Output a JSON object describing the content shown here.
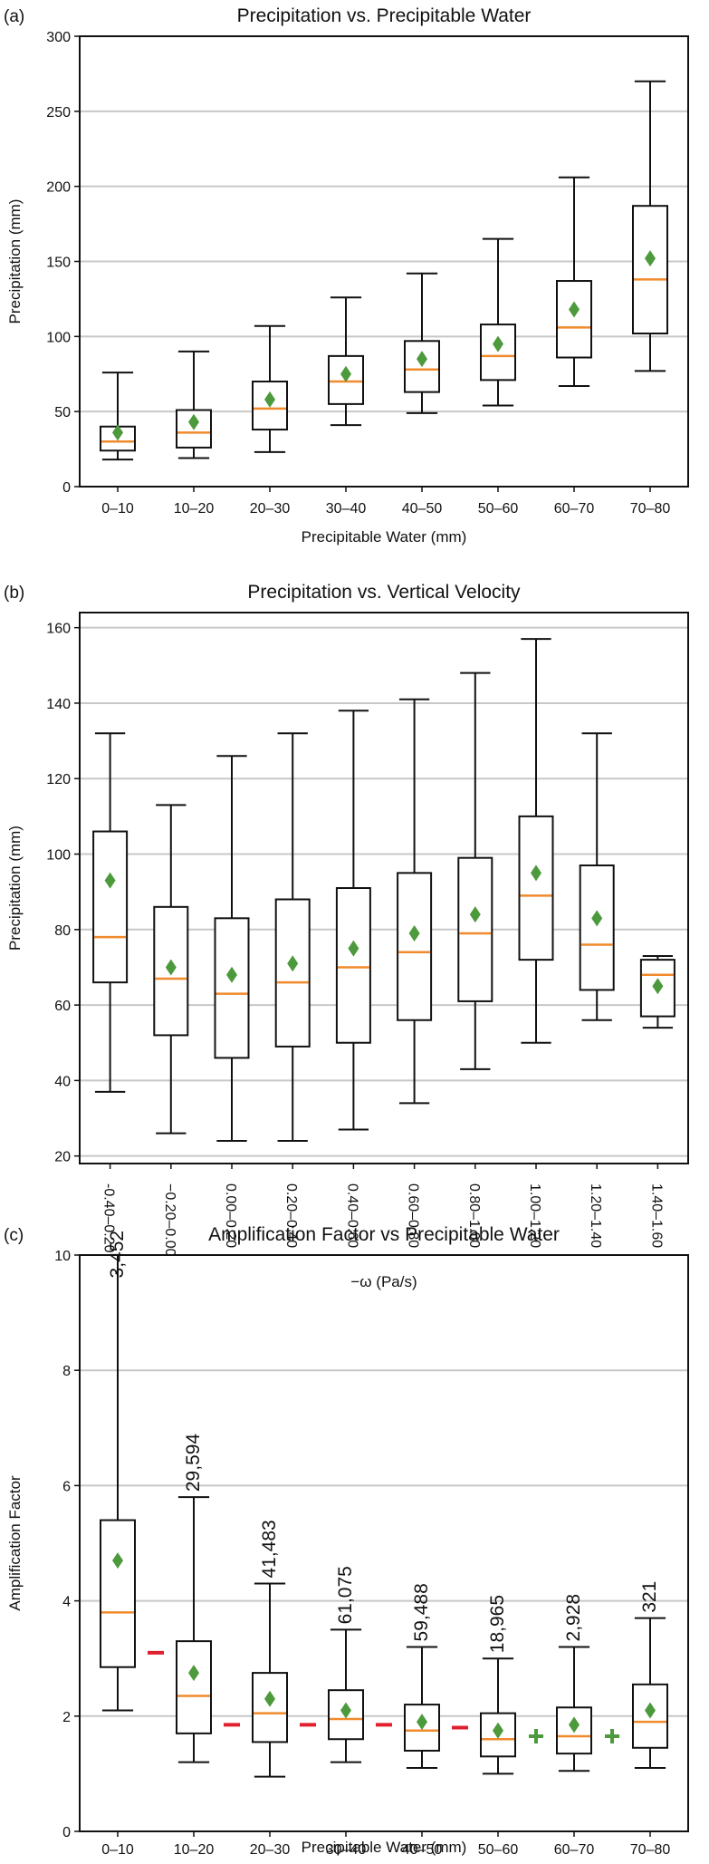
{
  "colors": {
    "median": "#f08a2c",
    "mean": "#4c9a3c",
    "grid": "#c8c8c8",
    "box": "#111111",
    "minus": "#e0202e",
    "plus": "#4c9a3c"
  },
  "chart_data": [
    {
      "type": "box",
      "panel_label": "(a)",
      "title": "Precipitation vs. Precipitable Water",
      "xlabel": "Precipitable Water (mm)",
      "ylabel": "Precipitation (mm)",
      "ylim": [
        0,
        300
      ],
      "yticks": [
        0,
        50,
        100,
        150,
        200,
        250,
        300
      ],
      "grid": "horizontal",
      "categories": [
        "0–10",
        "10–20",
        "20–30",
        "30–40",
        "40–50",
        "50–60",
        "60–70",
        "70–80"
      ],
      "whisker_low": [
        18,
        19,
        23,
        41,
        49,
        54,
        67,
        77
      ],
      "q1": [
        24,
        26,
        38,
        55,
        63,
        71,
        86,
        102
      ],
      "median": [
        30,
        36,
        52,
        70,
        78,
        87,
        106,
        138
      ],
      "q3": [
        40,
        51,
        70,
        87,
        97,
        108,
        137,
        187
      ],
      "whisker_high": [
        76,
        90,
        107,
        126,
        142,
        165,
        206,
        270
      ],
      "mean": [
        36,
        43,
        58,
        75,
        85,
        95,
        118,
        152
      ]
    },
    {
      "type": "box",
      "panel_label": "(b)",
      "title": "Precipitation vs. Vertical Velocity",
      "xlabel": "−ω (Pa/s)",
      "ylabel": "Precipitation (mm)",
      "ylim": [
        18,
        164
      ],
      "yticks": [
        20,
        40,
        60,
        80,
        100,
        120,
        140,
        160
      ],
      "grid": "horizontal",
      "categories": [
        "-0.40–0.20",
        "−0.20–0.00",
        "0.00–0.20",
        "0.20–0.40",
        "0.40–0.60",
        "0.60–0.80",
        "0.80–1.00",
        "1.00–1.20",
        "1.20–1.40",
        "1.40–1.60"
      ],
      "whisker_low": [
        37,
        26,
        24,
        24,
        27,
        34,
        43,
        50,
        56,
        54
      ],
      "q1": [
        66,
        52,
        46,
        49,
        50,
        56,
        61,
        72,
        64,
        57
      ],
      "median": [
        78,
        67,
        63,
        66,
        70,
        74,
        79,
        89,
        76,
        68
      ],
      "q3": [
        106,
        86,
        83,
        88,
        91,
        95,
        99,
        110,
        97,
        72
      ],
      "whisker_high": [
        132,
        113,
        126,
        132,
        138,
        141,
        148,
        157,
        132,
        73
      ],
      "mean": [
        93,
        70,
        68,
        71,
        75,
        79,
        84,
        95,
        83,
        65
      ]
    },
    {
      "type": "box",
      "panel_label": "(c)",
      "title": "Amplification Factor vs Precipitable Water",
      "xlabel": "Precipitable Water (mm)",
      "ylabel": "Amplification Factor",
      "ylim": [
        0,
        10
      ],
      "yticks": [
        0,
        2,
        4,
        6,
        8,
        10
      ],
      "grid": "horizontal",
      "categories": [
        "0–10",
        "10–20",
        "20–30",
        "30–40",
        "40–50",
        "50–60",
        "60–70",
        "70–80"
      ],
      "whisker_low": [
        2.1,
        1.2,
        0.95,
        1.2,
        1.1,
        1.0,
        1.05,
        1.1
      ],
      "q1": [
        2.85,
        1.7,
        1.55,
        1.6,
        1.4,
        1.3,
        1.35,
        1.45
      ],
      "median": [
        3.8,
        2.35,
        2.05,
        1.95,
        1.75,
        1.6,
        1.65,
        1.9
      ],
      "q3": [
        5.4,
        3.3,
        2.75,
        2.45,
        2.2,
        2.05,
        2.15,
        2.55
      ],
      "whisker_high": [
        10.0,
        5.8,
        4.3,
        3.5,
        3.2,
        3.0,
        3.2,
        3.7
      ],
      "mean": [
        4.7,
        2.75,
        2.3,
        2.1,
        1.9,
        1.75,
        1.85,
        2.1
      ],
      "counts": [
        "3,452",
        "29,594",
        "41,483",
        "61,075",
        "59,488",
        "18,965",
        "2,928",
        "321"
      ],
      "between_markers": [
        "−",
        "−",
        "−",
        "−",
        "−",
        "+",
        "+"
      ],
      "between_marker_values": [
        3.1,
        1.85,
        1.85,
        1.85,
        1.8,
        1.65,
        1.65
      ]
    }
  ]
}
